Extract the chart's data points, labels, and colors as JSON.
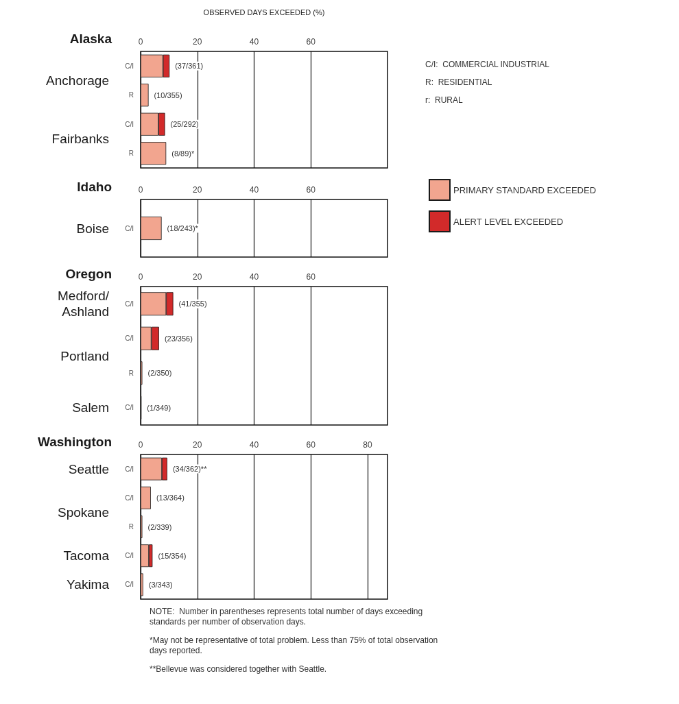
{
  "chart_data": [
    {
      "type": "bar",
      "title": "Alaska",
      "xlabel": "OBSERVED DAYS EXCEEDED (%)",
      "orientation": "horizontal",
      "stacked": true,
      "grid": "x",
      "legend": "right",
      "categories": [
        "C/I",
        "R",
        "C/I",
        "R"
      ],
      "y2_categories": [
        "Anchorage",
        null,
        "Fairbanks",
        null
      ],
      "xlim": [
        0,
        87
      ],
      "xticks": [
        0,
        20,
        40,
        60
      ],
      "series": [
        {
          "name": "PRIMARY STANDARD EXCEEDED",
          "color": "#f2a58f",
          "values": [
            7.9,
            2.8,
            6.3,
            9.0
          ],
          "value_labels": [
            "(37/361)",
            "(10/355)",
            "(25/292)",
            "(8/89)*"
          ]
        },
        {
          "name": "ALERT LEVEL EXCEEDED",
          "color": "#d22a2a",
          "values": [
            2.3,
            null,
            2.3,
            null
          ]
        }
      ],
      "annotations": [
        "C/I:  COMMERCIAL INDUSTRIAL",
        "R:  RESIDENTIAL",
        "r:  RURAL"
      ]
    },
    {
      "type": "bar",
      "title": "Idaho",
      "orientation": "horizontal",
      "stacked": true,
      "grid": "x",
      "categories": [
        "C/I"
      ],
      "y2_categories": [
        "Boise"
      ],
      "xlim": [
        0,
        87
      ],
      "xticks": [
        0,
        20,
        40,
        60
      ],
      "series": [
        {
          "color": "#f2a58f",
          "values": [
            7.4
          ],
          "value_labels": [
            "(18/243)*"
          ]
        },
        {
          "color": "#d22a2a",
          "values": [
            null
          ]
        }
      ]
    },
    {
      "type": "bar",
      "title": "Oregon",
      "orientation": "horizontal",
      "stacked": true,
      "grid": "x",
      "categories": [
        "C/I",
        "C/I",
        "R",
        "C/I"
      ],
      "y2_categories": [
        "Medford/\nAshland",
        "Portland",
        null,
        "Salem"
      ],
      "xlim": [
        0,
        87
      ],
      "xticks": [
        0,
        20,
        40,
        60
      ],
      "series": [
        {
          "color": "#f2a58f",
          "values": [
            9.0,
            3.8,
            0.6,
            0.3
          ],
          "value_labels": [
            "(41/355)",
            "(23/356)",
            "(2/350)",
            "(1/349)"
          ]
        },
        {
          "color": "#d22a2a",
          "values": [
            2.5,
            2.7,
            null,
            null
          ]
        }
      ]
    },
    {
      "type": "bar",
      "title": "Washington",
      "orientation": "horizontal",
      "stacked": true,
      "grid": "x",
      "categories": [
        "C/I",
        "C/I",
        "R",
        "C/I",
        "C/I"
      ],
      "y2_categories": [
        "Seattle",
        "Spokane",
        null,
        "Tacoma",
        "Yakima"
      ],
      "xlim": [
        0,
        87
      ],
      "xticks": [
        0,
        20,
        40,
        60,
        80
      ],
      "series": [
        {
          "color": "#f2a58f",
          "values": [
            7.5,
            3.6,
            0.6,
            2.9,
            0.9
          ],
          "value_labels": [
            "(34/362)**",
            "(13/364)",
            "(2/339)",
            "(15/354)",
            "(3/343)"
          ]
        },
        {
          "color": "#d22a2a",
          "values": [
            1.9,
            null,
            null,
            1.3,
            null
          ]
        }
      ],
      "annotations": [
        "NOTE:  Number in parentheses represents total number of days exceeding standards per number of observation days.",
        "*May not be representative of total problem. Less than 75% of total observation days reported.",
        "**Bellevue was considered together with Seattle."
      ]
    }
  ]
}
